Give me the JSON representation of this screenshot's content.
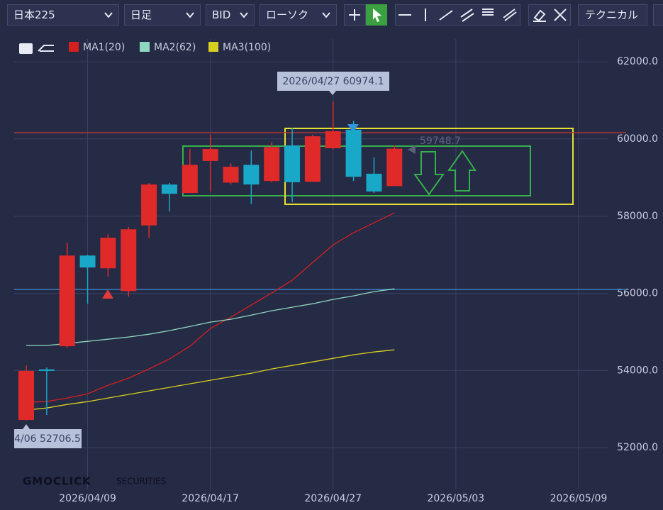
{
  "toolbar": {
    "symbol": "日本225",
    "period": "日足",
    "side": "BID",
    "chart_style": "ローソク",
    "technical": "テクニカル"
  },
  "brand": "GMOCLICK",
  "brand_sub": "SECURITIES",
  "chart_data": {
    "type": "candlestick",
    "categories": [
      null,
      null,
      null,
      "2026/04/09",
      null,
      null,
      null,
      null,
      null,
      "2026/04/17",
      null,
      null,
      null,
      null,
      null,
      "2026/04/27",
      null,
      null,
      null,
      null,
      null,
      "2026/05/03",
      null,
      null,
      null,
      null,
      null,
      "2026/05/09"
    ],
    "open": [
      52720,
      54030,
      54630,
      56980,
      56650,
      56060,
      57760,
      58820,
      58600,
      59430,
      58870,
      59330,
      58910,
      59830,
      58890,
      59760,
      60240,
      59100,
      58780,
      null,
      null,
      null,
      null,
      null,
      null,
      null,
      null,
      null
    ],
    "high": [
      54130,
      54080,
      57310,
      57000,
      57530,
      57720,
      58860,
      58860,
      59740,
      60110,
      59370,
      59700,
      59920,
      60290,
      60110,
      60974.1,
      60470,
      59520,
      59830,
      null,
      null,
      null,
      null,
      null,
      null,
      null,
      null,
      null
    ],
    "low": [
      52706.5,
      52850,
      54590,
      55730,
      56430,
      55920,
      57440,
      58120,
      58600,
      58640,
      58820,
      58310,
      58880,
      58360,
      58890,
      59740,
      58910,
      58600,
      58780,
      null,
      null,
      null,
      null,
      null,
      null,
      null,
      null,
      null
    ],
    "close": [
      53990,
      53990,
      56980,
      56670,
      57440,
      57660,
      58820,
      58580,
      59330,
      59740,
      59280,
      58820,
      59790,
      58880,
      60070,
      60200,
      59020,
      58640,
      59748.7,
      null,
      null,
      null,
      null,
      null,
      null,
      null,
      null,
      null
    ],
    "up_color": "#e02a2a",
    "down_color": "#1aa8c8",
    "series": [
      {
        "name": "MA1(20)",
        "color": "#d42020",
        "values": [
          53178,
          53196,
          53288,
          53398,
          53619,
          53803,
          54042,
          54299,
          54630,
          55090,
          55383,
          55696,
          56009,
          56339,
          56799,
          57258,
          57571,
          57828,
          58085,
          null,
          null,
          null,
          null,
          null,
          null,
          null,
          null,
          null
        ]
      },
      {
        "name": "MA2(62)",
        "color": "#8ed8c0",
        "values": [
          54648,
          54648,
          54703,
          54758,
          54813,
          54869,
          54942,
          55034,
          55144,
          55255,
          55328,
          55438,
          55549,
          55641,
          55732,
          55843,
          55935,
          56045,
          56118,
          null,
          null,
          null,
          null,
          null,
          null,
          null,
          null,
          null
        ]
      },
      {
        "name": "MA3(100)",
        "color": "#d8d020",
        "values": [
          52975,
          53030,
          53122,
          53196,
          53288,
          53380,
          53472,
          53564,
          53656,
          53748,
          53840,
          53931,
          54042,
          54133,
          54225,
          54317,
          54409,
          54482,
          54537,
          null,
          null,
          null,
          null,
          null,
          null,
          null,
          null,
          null
        ]
      }
    ],
    "levels": [
      {
        "value": 60162,
        "color": "#b83434"
      },
      {
        "value": 56100,
        "color": "#3a7ab8"
      }
    ],
    "annotations": [
      "2026/04/27 60974.1",
      "4/06 52706.5",
      "59748.7"
    ],
    "ylim": [
      50920,
      62590
    ],
    "yticks": [
      {
        "value": 52000,
        "label": "52000.0"
      },
      {
        "value": 54000,
        "label": "54000.0"
      },
      {
        "value": 56000,
        "label": "56000.0"
      },
      {
        "value": 58000,
        "label": "58000.0"
      },
      {
        "value": 60000,
        "label": "60000.0"
      },
      {
        "value": 62000,
        "label": "62000.0"
      }
    ],
    "grid": true
  }
}
